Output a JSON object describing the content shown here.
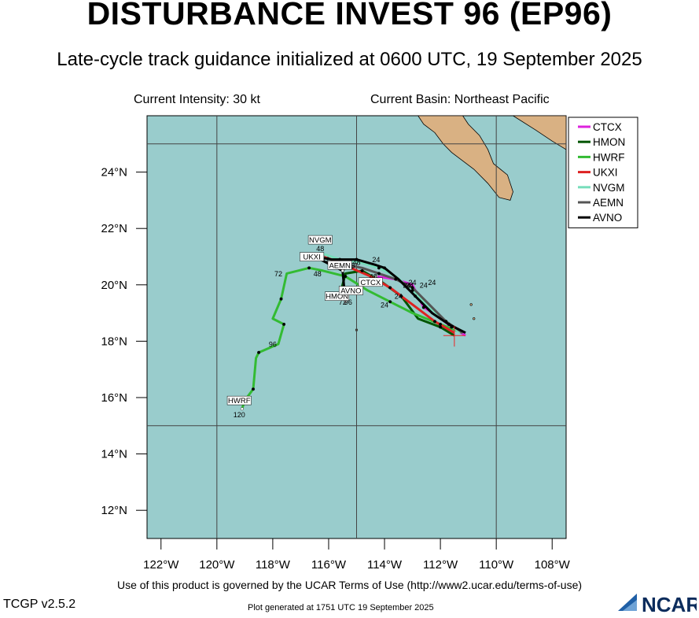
{
  "page": {
    "title": "DISTURBANCE INVEST 96 (EP96)",
    "subtitle": "Late-cycle track guidance initialized at 0600 UTC, 19 September 2025",
    "current_intensity": "Current Intensity: 30 kt",
    "current_basin": "Current Basin: Northeast Pacific",
    "terms": "Use of this product is governed by the UCAR Terms of Use (http://www2.ucar.edu/terms-of-use)",
    "version": "TCGP v2.5.2",
    "generated": "Plot generated at 1751 UTC   19 September 2025",
    "logo_text": "NCAR"
  },
  "chart_data": {
    "type": "line",
    "map": {
      "lon_range": [
        -122.5,
        -107.5
      ],
      "lat_range": [
        11,
        26
      ],
      "ocean_color": "#99cccc",
      "land_color": "#d9b183",
      "grid_color": "#444444",
      "grid_lons": [
        -120,
        -115,
        -110
      ],
      "grid_lats": [
        15,
        25
      ]
    },
    "x_ticks": [
      {
        "lon": -122,
        "label": "122°W"
      },
      {
        "lon": -120,
        "label": "120°W"
      },
      {
        "lon": -118,
        "label": "118°W"
      },
      {
        "lon": -116,
        "label": "116°W"
      },
      {
        "lon": -114,
        "label": "114°W"
      },
      {
        "lon": -112,
        "label": "112°W"
      },
      {
        "lon": -110,
        "label": "110°W"
      },
      {
        "lon": -108,
        "label": "108°W"
      }
    ],
    "y_ticks": [
      {
        "lat": 12,
        "label": "12°N"
      },
      {
        "lat": 14,
        "label": "14°N"
      },
      {
        "lat": 16,
        "label": "16°N"
      },
      {
        "lat": 18,
        "label": "18°N"
      },
      {
        "lat": 20,
        "label": "20°N"
      },
      {
        "lat": 22,
        "label": "22°N"
      },
      {
        "lat": 24,
        "label": "24°N"
      }
    ],
    "current_position": {
      "lon": -111.5,
      "lat": 18.2
    },
    "legend_position": "top-right",
    "series": [
      {
        "name": "CTCX",
        "color": "#dd22dd",
        "points": [
          [
            -111.1,
            18.2
          ],
          [
            -111.6,
            18.5
          ],
          [
            -112.1,
            18.9
          ],
          [
            -112.6,
            19.2
          ],
          [
            -113.0,
            20.0
          ],
          [
            -113.6,
            20.2
          ],
          [
            -114.3,
            20.3
          ]
        ],
        "labels": [
          {
            "text": "24",
            "lon": -113.0,
            "lat": 20.0
          },
          {
            "text": "48",
            "lon": -114.4,
            "lat": 20.2
          }
        ],
        "end_label": {
          "text": "CTCX",
          "lon": -114.5,
          "lat": 20.0
        }
      },
      {
        "name": "HMON",
        "color": "#005500",
        "points": [
          [
            -111.5,
            18.2
          ],
          [
            -112.0,
            18.5
          ],
          [
            -112.8,
            18.8
          ],
          [
            -113.4,
            19.6
          ],
          [
            -114.1,
            20.1
          ],
          [
            -114.8,
            20.5
          ],
          [
            -115.4,
            20.4
          ],
          [
            -115.6,
            19.6
          ]
        ],
        "labels": [
          {
            "text": "24",
            "lon": -113.5,
            "lat": 19.5
          },
          {
            "text": "72",
            "lon": -115.5,
            "lat": 19.3
          }
        ],
        "end_label": {
          "text": "HMON",
          "lon": -115.7,
          "lat": 19.5
        }
      },
      {
        "name": "HWRF",
        "color": "#33bb33",
        "points": [
          [
            -111.2,
            18.3
          ],
          [
            -112.0,
            18.6
          ],
          [
            -113.0,
            19.0
          ],
          [
            -113.8,
            19.4
          ],
          [
            -114.6,
            19.8
          ],
          [
            -115.4,
            20.3
          ],
          [
            -116.2,
            20.5
          ],
          [
            -116.7,
            20.6
          ],
          [
            -117.5,
            20.4
          ],
          [
            -117.7,
            19.5
          ],
          [
            -118.0,
            18.8
          ],
          [
            -117.6,
            18.6
          ],
          [
            -117.8,
            17.9
          ],
          [
            -118.5,
            17.6
          ],
          [
            -118.6,
            17.4
          ],
          [
            -118.7,
            16.3
          ],
          [
            -119.0,
            15.9
          ],
          [
            -119.1,
            15.6
          ]
        ],
        "labels": [
          {
            "text": "24",
            "lon": -114.0,
            "lat": 19.2
          },
          {
            "text": "48",
            "lon": -116.4,
            "lat": 20.3
          },
          {
            "text": "72",
            "lon": -117.8,
            "lat": 20.3
          },
          {
            "text": "96",
            "lon": -118.0,
            "lat": 17.8
          },
          {
            "text": "120",
            "lon": -119.2,
            "lat": 15.3
          }
        ],
        "end_label": {
          "text": "HWRF",
          "lon": -119.2,
          "lat": 15.8
        }
      },
      {
        "name": "UKXI",
        "color": "#dd2222",
        "points": [
          [
            -111.5,
            18.3
          ],
          [
            -112.2,
            18.7
          ],
          [
            -113.0,
            19.3
          ],
          [
            -113.8,
            19.9
          ],
          [
            -114.5,
            20.3
          ],
          [
            -115.2,
            20.6
          ],
          [
            -115.9,
            20.9
          ],
          [
            -116.2,
            21.0
          ]
        ],
        "labels": [
          {
            "text": "24",
            "lon": -113.1,
            "lat": 19.9
          },
          {
            "text": "48",
            "lon": -115.0,
            "lat": 20.7
          },
          {
            "text": "72",
            "lon": -116.1,
            "lat": 20.8
          }
        ],
        "end_label": {
          "text": "UKXI",
          "lon": -116.6,
          "lat": 20.9
        }
      },
      {
        "name": "NVGM",
        "color": "#77ddbb",
        "points": [
          [
            -111.3,
            18.3
          ],
          [
            -111.8,
            18.7
          ],
          [
            -112.4,
            19.2
          ],
          [
            -113.0,
            19.8
          ],
          [
            -113.6,
            20.3
          ],
          [
            -114.2,
            20.6
          ],
          [
            -114.9,
            20.8
          ],
          [
            -115.6,
            20.9
          ],
          [
            -116.2,
            21.1
          ],
          [
            -116.6,
            20.9
          ]
        ],
        "labels": [
          {
            "text": "24",
            "lon": -113.2,
            "lat": 19.9
          },
          {
            "text": "48",
            "lon": -116.3,
            "lat": 21.2
          }
        ],
        "end_label": {
          "text": "NVGM",
          "lon": -116.3,
          "lat": 21.5
        }
      },
      {
        "name": "AEMN",
        "color": "#555555",
        "points": [
          [
            -111.2,
            18.3
          ],
          [
            -111.8,
            18.7
          ],
          [
            -112.4,
            19.3
          ],
          [
            -113.0,
            19.9
          ],
          [
            -113.6,
            20.2
          ],
          [
            -114.2,
            20.4
          ],
          [
            -114.8,
            20.6
          ],
          [
            -115.3,
            20.7
          ],
          [
            -115.5,
            20.5
          ]
        ],
        "labels": [
          {
            "text": "24",
            "lon": -112.6,
            "lat": 19.9
          },
          {
            "text": "48",
            "lon": -115.2,
            "lat": 20.6
          }
        ],
        "end_label": {
          "text": "AEMN",
          "lon": -115.6,
          "lat": 20.6
        }
      },
      {
        "name": "AVNO",
        "color": "#000000",
        "points": [
          [
            -111.1,
            18.3
          ],
          [
            -111.7,
            18.6
          ],
          [
            -112.3,
            19.0
          ],
          [
            -112.9,
            19.6
          ],
          [
            -113.5,
            20.2
          ],
          [
            -114.0,
            20.6
          ],
          [
            -114.3,
            20.7
          ],
          [
            -115.0,
            20.9
          ],
          [
            -115.9,
            20.9
          ],
          [
            -116.5,
            21.0
          ],
          [
            -115.5,
            20.5
          ],
          [
            -115.4,
            19.4
          ]
        ],
        "labels": [
          {
            "text": "24",
            "lon": -112.3,
            "lat": 20.0
          },
          {
            "text": "24",
            "lon": -114.3,
            "lat": 20.8
          },
          {
            "text": "96",
            "lon": -115.3,
            "lat": 19.3
          }
        ],
        "end_label": {
          "text": "AVNO",
          "lon": -115.2,
          "lat": 19.7
        }
      }
    ]
  }
}
